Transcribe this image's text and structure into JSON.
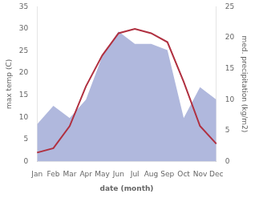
{
  "chart_data": {
    "type": "line",
    "categories": [
      "Jan",
      "Feb",
      "Mar",
      "Apr",
      "May",
      "Jun",
      "Jul",
      "Aug",
      "Sep",
      "Oct",
      "Nov",
      "Dec"
    ],
    "xlabel": "date (month)",
    "ylabel": "max temp (C)",
    "y2label": "med. precipitation (kg/m2)",
    "series": [
      {
        "type": "area",
        "axis": "y2",
        "color": "#b0b8dd",
        "values": [
          6,
          9,
          7,
          10,
          17,
          21,
          19,
          19,
          18,
          7,
          12,
          10
        ]
      },
      {
        "type": "line",
        "color": "#b03040",
        "values": [
          2,
          3,
          8,
          17,
          24,
          29,
          30,
          29,
          27,
          18,
          8,
          4
        ]
      }
    ],
    "ylim": [
      0,
      35
    ],
    "yticks": [
      0,
      5,
      10,
      15,
      20,
      25,
      30,
      35
    ],
    "y2lim": [
      0,
      25
    ],
    "y2ticks": [
      0,
      5,
      10,
      15,
      20,
      25
    ],
    "grid": false
  }
}
